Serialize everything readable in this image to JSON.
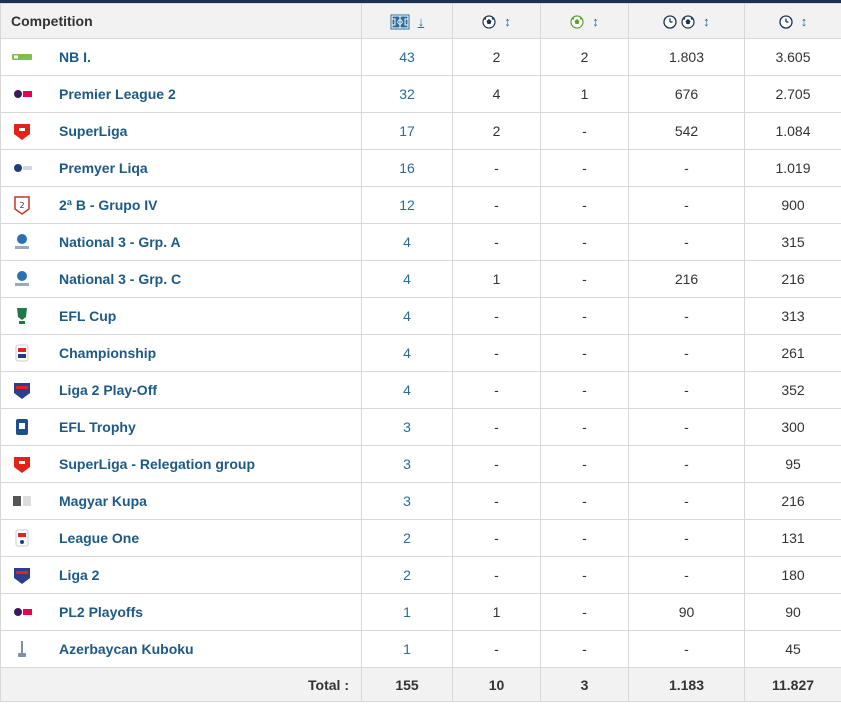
{
  "header": {
    "competition_label": "Competition",
    "sort_active": "↓",
    "sort_default": "↕"
  },
  "rows": [
    {
      "name": "NB I.",
      "apps": "43",
      "goals": "2",
      "assists": "2",
      "mpg": "1.803",
      "minutes": "3.605",
      "logo": "nb1-logo-icon"
    },
    {
      "name": "Premier League 2",
      "apps": "32",
      "goals": "4",
      "assists": "1",
      "mpg": "676",
      "minutes": "2.705",
      "logo": "pl2-logo-icon"
    },
    {
      "name": "SuperLiga",
      "apps": "17",
      "goals": "2",
      "assists": "-",
      "mpg": "542",
      "minutes": "1.084",
      "logo": "superliga-logo-icon"
    },
    {
      "name": "Premyer Liqa",
      "apps": "16",
      "goals": "-",
      "assists": "-",
      "mpg": "-",
      "minutes": "1.019",
      "logo": "premyer-liqa-logo-icon"
    },
    {
      "name": "2ª B - Grupo IV",
      "apps": "12",
      "goals": "-",
      "assists": "-",
      "mpg": "-",
      "minutes": "900",
      "logo": "segunda-b-logo-icon"
    },
    {
      "name": "National 3 - Grp. A",
      "apps": "4",
      "goals": "-",
      "assists": "-",
      "mpg": "-",
      "minutes": "315",
      "logo": "national-3-logo-icon"
    },
    {
      "name": "National 3 - Grp. C",
      "apps": "4",
      "goals": "1",
      "assists": "-",
      "mpg": "216",
      "minutes": "216",
      "logo": "national-3-logo-icon"
    },
    {
      "name": "EFL Cup",
      "apps": "4",
      "goals": "-",
      "assists": "-",
      "mpg": "-",
      "minutes": "313",
      "logo": "efl-cup-logo-icon"
    },
    {
      "name": "Championship",
      "apps": "4",
      "goals": "-",
      "assists": "-",
      "mpg": "-",
      "minutes": "261",
      "logo": "championship-logo-icon"
    },
    {
      "name": "Liga 2 Play-Off",
      "apps": "4",
      "goals": "-",
      "assists": "-",
      "mpg": "-",
      "minutes": "352",
      "logo": "liga2-logo-icon"
    },
    {
      "name": "EFL Trophy",
      "apps": "3",
      "goals": "-",
      "assists": "-",
      "mpg": "-",
      "minutes": "300",
      "logo": "efl-trophy-logo-icon"
    },
    {
      "name": "SuperLiga - Relegation group",
      "apps": "3",
      "goals": "-",
      "assists": "-",
      "mpg": "-",
      "minutes": "95",
      "logo": "superliga-logo-icon"
    },
    {
      "name": "Magyar Kupa",
      "apps": "3",
      "goals": "-",
      "assists": "-",
      "mpg": "-",
      "minutes": "216",
      "logo": "magyar-kupa-logo-icon"
    },
    {
      "name": "League One",
      "apps": "2",
      "goals": "-",
      "assists": "-",
      "mpg": "-",
      "minutes": "131",
      "logo": "league-one-logo-icon"
    },
    {
      "name": "Liga 2",
      "apps": "2",
      "goals": "-",
      "assists": "-",
      "mpg": "-",
      "minutes": "180",
      "logo": "liga2-logo-icon"
    },
    {
      "name": "PL2 Playoffs",
      "apps": "1",
      "goals": "1",
      "assists": "-",
      "mpg": "90",
      "minutes": "90",
      "logo": "pl2-logo-icon"
    },
    {
      "name": "Azerbaycan Kuboku",
      "apps": "1",
      "goals": "-",
      "assists": "-",
      "mpg": "-",
      "minutes": "45",
      "logo": "azerbaycan-kuboku-logo-icon"
    }
  ],
  "totals": {
    "label": "Total :",
    "apps": "155",
    "goals": "10",
    "assists": "3",
    "mpg": "1.183",
    "minutes": "11.827"
  },
  "colors": {
    "link": "#1d5a85",
    "number": "#2a6b9a",
    "header_bg": "#f2f2f2",
    "topbar": "#1d3153"
  }
}
